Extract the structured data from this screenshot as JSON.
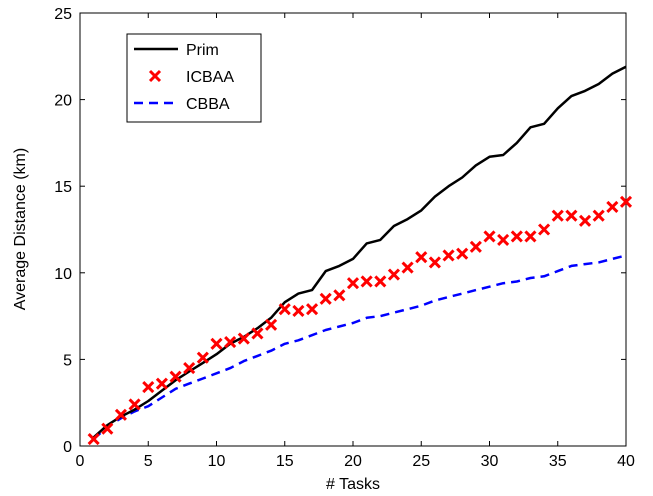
{
  "chart_data": {
    "type": "line",
    "xlabel": "# Tasks",
    "ylabel": "Average Distance (km)",
    "xlim": [
      0,
      40
    ],
    "ylim": [
      0,
      25
    ],
    "xticks": [
      0,
      5,
      10,
      15,
      20,
      25,
      30,
      35,
      40
    ],
    "yticks": [
      0,
      5,
      10,
      15,
      20,
      25
    ],
    "grid": false,
    "legend_position": "top-left",
    "x": [
      1,
      2,
      3,
      4,
      5,
      6,
      7,
      8,
      9,
      10,
      11,
      12,
      13,
      14,
      15,
      16,
      17,
      18,
      19,
      20,
      21,
      22,
      23,
      24,
      25,
      26,
      27,
      28,
      29,
      30,
      31,
      32,
      33,
      34,
      35,
      36,
      37,
      38,
      39,
      40
    ],
    "series": [
      {
        "name": "Prim",
        "style": "solid-line",
        "color": "#000000",
        "values": [
          0.5,
          1.2,
          1.7,
          2.1,
          2.6,
          3.2,
          3.8,
          4.3,
          4.8,
          5.3,
          5.9,
          6.3,
          6.8,
          7.4,
          8.3,
          8.8,
          9.0,
          10.1,
          10.4,
          10.8,
          11.7,
          11.9,
          12.7,
          13.1,
          13.6,
          14.4,
          15.0,
          15.5,
          16.2,
          16.7,
          16.8,
          17.5,
          18.4,
          18.6,
          19.5,
          20.2,
          20.5,
          20.9,
          21.5,
          21.9
        ]
      },
      {
        "name": "ICBAA",
        "style": "x-markers",
        "color": "#ff0000",
        "values": [
          0.4,
          1.0,
          1.8,
          2.4,
          3.4,
          3.6,
          4.0,
          4.5,
          5.1,
          5.9,
          6.0,
          6.2,
          6.5,
          7.0,
          7.9,
          7.8,
          7.9,
          8.5,
          8.7,
          9.4,
          9.5,
          9.5,
          9.9,
          10.3,
          10.9,
          10.6,
          11.0,
          11.1,
          11.5,
          12.1,
          11.9,
          12.1,
          12.1,
          12.5,
          13.3,
          13.3,
          13.0,
          13.3,
          13.8,
          14.1
        ]
      },
      {
        "name": "CBBA",
        "style": "dashed-line",
        "color": "#0000ff",
        "values": [
          0.4,
          1.1,
          1.6,
          2.0,
          2.3,
          2.8,
          3.3,
          3.6,
          3.9,
          4.2,
          4.5,
          4.9,
          5.2,
          5.5,
          5.9,
          6.1,
          6.4,
          6.7,
          6.9,
          7.1,
          7.4,
          7.5,
          7.7,
          7.9,
          8.1,
          8.4,
          8.6,
          8.8,
          9.0,
          9.2,
          9.4,
          9.5,
          9.7,
          9.8,
          10.1,
          10.4,
          10.5,
          10.6,
          10.8,
          11.0
        ]
      }
    ]
  }
}
